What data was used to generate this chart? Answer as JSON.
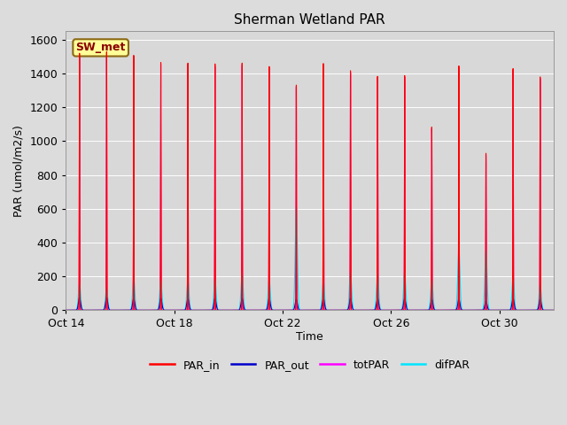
{
  "title": "Sherman Wetland PAR",
  "ylabel": "PAR (umol/m2/s)",
  "xlabel": "Time",
  "legend_label": "SW_met",
  "series_labels": [
    "PAR_in",
    "PAR_out",
    "totPAR",
    "difPAR"
  ],
  "series_colors": [
    "#ff0000",
    "#0000cc",
    "#ff00ff",
    "#00e5ff"
  ],
  "ylim": [
    0,
    1650
  ],
  "yticks": [
    0,
    200,
    400,
    600,
    800,
    1000,
    1200,
    1400,
    1600
  ],
  "bg_color": "#dcdcdc",
  "plot_bg_color": "#d8d8d8",
  "x_tick_labels": [
    "Oct 14",
    "Oct 18",
    "Oct 22",
    "Oct 26",
    "Oct 30"
  ],
  "num_days": 18,
  "samples_per_day": 288,
  "annotation_box_color": "#ffff99",
  "annotation_box_edge": "#8B6914",
  "annotation_text_color": "#8B0000",
  "annotation_fontsize": 9,
  "par_in_peaks": [
    1520,
    1530,
    1510,
    1470,
    1470,
    1470,
    1480,
    1465,
    1360,
    1490,
    1440,
    1400,
    1400,
    1090,
    1450,
    930,
    1430,
    1380
  ],
  "par_tot_peaks": [
    1510,
    1520,
    1500,
    1460,
    1460,
    1455,
    1470,
    1455,
    1350,
    1480,
    1430,
    1395,
    1390,
    1080,
    1440,
    920,
    1420,
    1370
  ],
  "par_out_peaks": [
    75,
    75,
    70,
    70,
    70,
    70,
    70,
    70,
    65,
    70,
    70,
    70,
    70,
    65,
    65,
    55,
    70,
    65
  ],
  "dif_par_peaks": [
    160,
    130,
    190,
    180,
    180,
    185,
    220,
    185,
    615,
    175,
    230,
    220,
    225,
    185,
    355,
    360,
    200,
    155
  ],
  "pulse_sigma": 0.008,
  "pulse_cutoff": 0.25,
  "dif_sigma": 0.04,
  "dif_cutoff": 0.28
}
